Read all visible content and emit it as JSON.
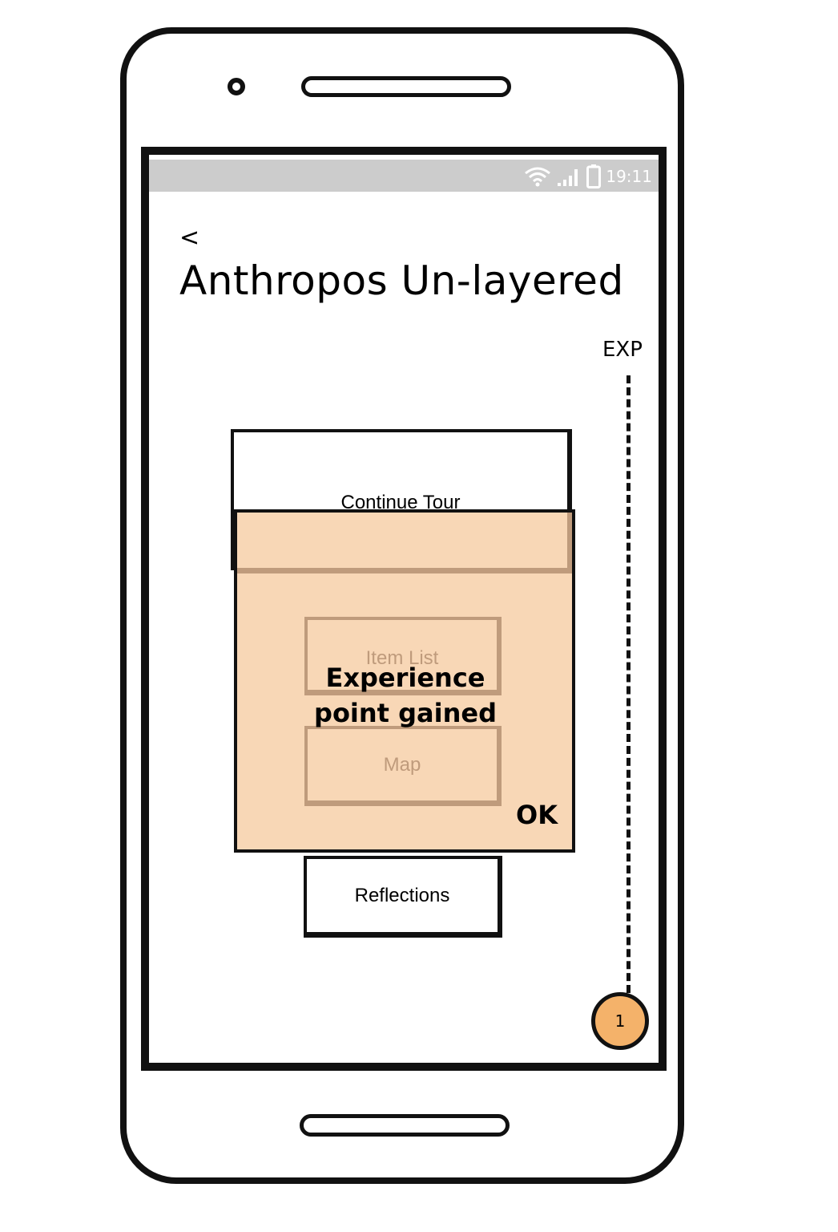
{
  "status_bar": {
    "time": "19:11",
    "icons": [
      "wifi-icon",
      "signal-icon",
      "battery-icon"
    ],
    "background": "#cccccc"
  },
  "header": {
    "back_label": "<",
    "title": "Anthropos Un-layered"
  },
  "experience": {
    "label": "EXP",
    "level": "1",
    "badge_color": "#f4b26a"
  },
  "menu": {
    "continue_tour": "Continue Tour",
    "item_list": "Item List",
    "map": "Map",
    "reflections": "Reflections"
  },
  "modal": {
    "message": "Experience point gained",
    "ok_label": "OK",
    "background": "#f8d7b6"
  }
}
